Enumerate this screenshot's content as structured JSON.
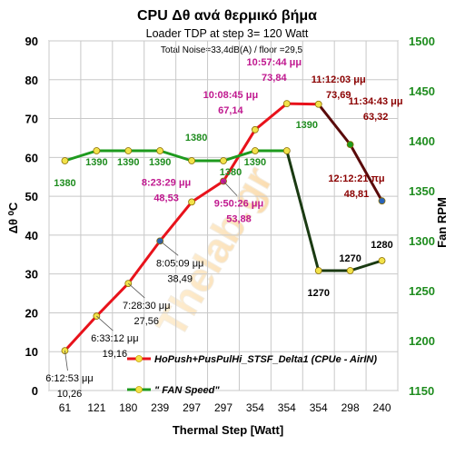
{
  "chart_data": {
    "type": "line",
    "title": "CPU  Δθ   ανά θερμικό βήμα",
    "subtitle": "Loader TDP at step 3= 120 Watt",
    "note": "Total Noise=33,4dB(A) / floor =29,5",
    "xlabel": "Thermal Step [Watt]",
    "ylabel_left": "Δθ ⁰C",
    "ylabel_right": "Fan RPM",
    "watermark": "Thelab.gr",
    "categories": [
      "61",
      "121",
      "180",
      "239",
      "297",
      "297",
      "354",
      "354",
      "354",
      "298",
      "240"
    ],
    "y_left_range": [
      0,
      90
    ],
    "y_left_ticks": [
      "0",
      "10",
      "20",
      "30",
      "40",
      "50",
      "60",
      "70",
      "80",
      "90"
    ],
    "y_right_range": [
      1150,
      1500
    ],
    "y_right_ticks": [
      "1150",
      "1200",
      "1250",
      "1300",
      "1350",
      "1400",
      "1450",
      "1500"
    ],
    "grid": true,
    "legend_position": "lower-right",
    "series": [
      {
        "name": "HoPush+PusPulHi_STSF_Delta1 (CPUe - AirIN)",
        "axis": "left",
        "values": [
          10.26,
          19.16,
          27.56,
          38.49,
          48.53,
          53.88,
          67.14,
          73.84,
          73.69,
          63.32,
          48.81
        ]
      },
      {
        "name": "\" FAN Speed\"",
        "axis": "right",
        "values": [
          1380,
          1390,
          1390,
          1390,
          1380,
          1380,
          1390,
          1390,
          1270,
          1270,
          1280
        ]
      }
    ],
    "temp_annotations": [
      {
        "time": "6:12:53 μμ",
        "value": "10,26"
      },
      {
        "time": "6:33:12 μμ",
        "value": "19,16"
      },
      {
        "time": "7:28:30 μμ",
        "value": "27,56"
      },
      {
        "time": "8:05:09 μμ",
        "value": "38,49"
      },
      {
        "time": "8:23:29 μμ",
        "value": "48,53"
      },
      {
        "time": "9:50:26 μμ",
        "value": "53,88"
      },
      {
        "time": "10:08:45 μμ",
        "value": "67,14"
      },
      {
        "time": "10:57:44 μμ",
        "value": "73,84"
      },
      {
        "time": "11:12:03 μμ",
        "value": "73,69"
      },
      {
        "time": "11:34:43 μμ",
        "value": "63,32"
      },
      {
        "time": "12:12:21 πμ",
        "value": "48,81"
      }
    ],
    "fan_labels": [
      "1380",
      "1390",
      "1390",
      "1390",
      "1380",
      "1380",
      "1390",
      "1390",
      "1270",
      "1270",
      "1280"
    ],
    "colors": {
      "temp_line": "#e8121b",
      "temp_line_dark": "#5a0a0a",
      "fan_line": "#1e9a1e",
      "fan_line_dark": "#1a3a12",
      "dark_red_text": "#8b0000",
      "magenta_text": "#c0188f",
      "green_text": "#1e8c1e",
      "marker_yellow": "#f2e24a",
      "marker_magenta": "#c8189a",
      "marker_blue": "#2a63b8",
      "grid": "#c8c8c8"
    }
  }
}
